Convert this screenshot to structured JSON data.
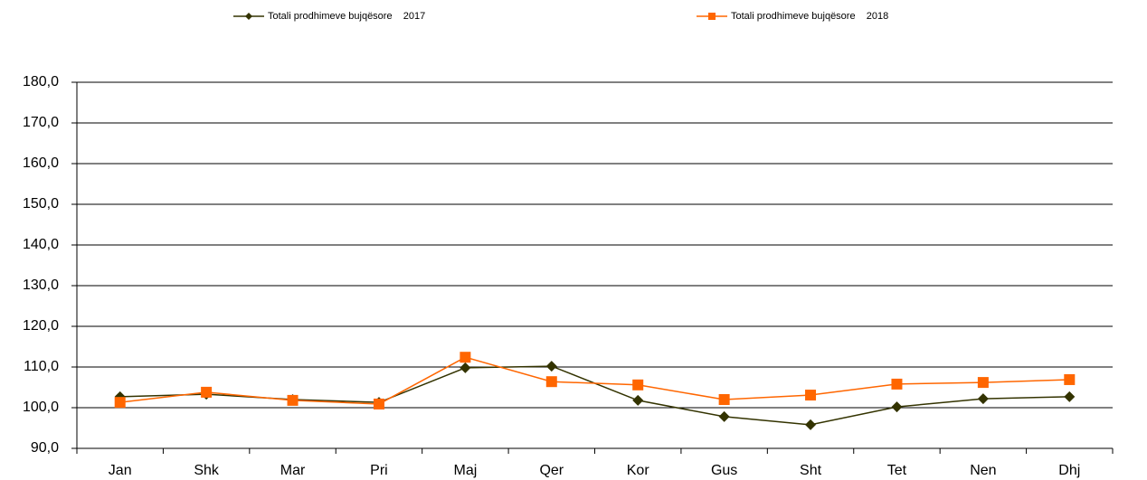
{
  "chart_data": {
    "type": "line",
    "categories": [
      "Jan",
      "Shk",
      "Mar",
      "Pri",
      "Maj",
      "Qer",
      "Kor",
      "Gus",
      "Sht",
      "Tet",
      "Nen",
      "Dhj"
    ],
    "series": [
      {
        "name": "Totali prodhimeve bujqësore    2017",
        "color": "#333300",
        "marker": "diamond",
        "values": [
          102.7,
          103.3,
          102.0,
          101.3,
          109.8,
          110.2,
          101.8,
          97.8,
          95.8,
          100.2,
          102.2,
          102.7
        ]
      },
      {
        "name": "Totali prodhimeve bujqësore    2018",
        "color": "#ff6600",
        "marker": "square",
        "values": [
          101.3,
          103.8,
          101.8,
          100.9,
          112.4,
          106.4,
          105.6,
          102.0,
          103.1,
          105.8,
          106.2,
          106.9
        ]
      }
    ],
    "ylim": [
      90,
      180
    ],
    "yticks": [
      {
        "value": 90,
        "label": "90,0"
      },
      {
        "value": 100,
        "label": "100,0"
      },
      {
        "value": 110,
        "label": "110,0"
      },
      {
        "value": 120,
        "label": "120,0"
      },
      {
        "value": 130,
        "label": "130,0"
      },
      {
        "value": 140,
        "label": "140,0"
      },
      {
        "value": 150,
        "label": "150,0"
      },
      {
        "value": 160,
        "label": "160,0"
      },
      {
        "value": 170,
        "label": "170,0"
      },
      {
        "value": 180,
        "label": "180,0"
      }
    ],
    "grid": true,
    "legend": "top"
  }
}
